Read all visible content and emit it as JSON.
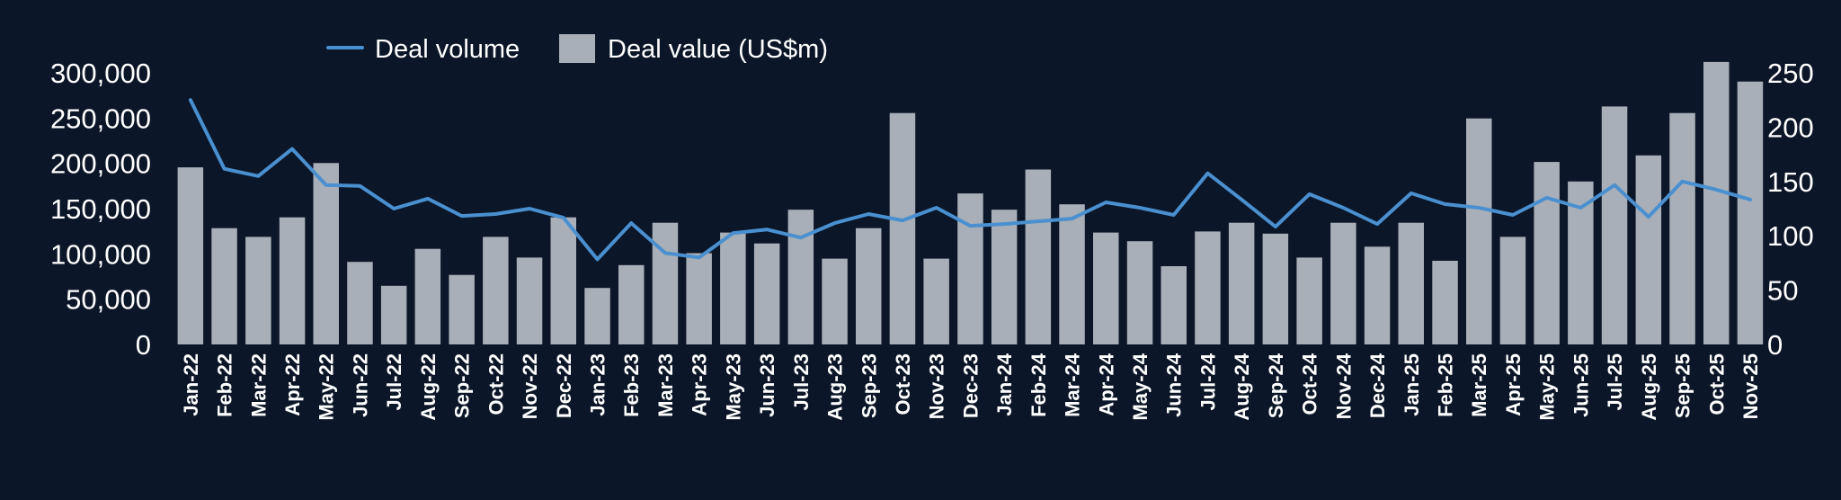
{
  "chart_data": {
    "type": "bar",
    "categories": [
      "Jan-22",
      "Feb-22",
      "Mar-22",
      "Apr-22",
      "May-22",
      "Jun-22",
      "Jul-22",
      "Aug-22",
      "Sep-22",
      "Oct-22",
      "Nov-22",
      "Dec-22",
      "Jan-23",
      "Feb-23",
      "Mar-23",
      "Apr-23",
      "May-23",
      "Jun-23",
      "Jul-23",
      "Aug-23",
      "Sep-23",
      "Oct-23",
      "Nov-23",
      "Dec-23",
      "Jan-24",
      "Feb-24",
      "Mar-24",
      "Apr-24",
      "May-24",
      "Jun-24",
      "Jul-24",
      "Aug-24",
      "Sep-24",
      "Oct-24",
      "Nov-24",
      "Dec-24",
      "Jan-25",
      "Feb-25",
      "Mar-25",
      "Apr-25",
      "May-25",
      "Jun-25",
      "Jul-25",
      "Aug-25",
      "Sep-25",
      "Oct-25",
      "Nov-25"
    ],
    "series": [
      {
        "name": "Deal volume",
        "kind": "line",
        "axis": "left",
        "color": "#4a90d0",
        "values": [
          270000,
          194000,
          186000,
          216000,
          176000,
          175000,
          150000,
          161000,
          142000,
          144000,
          150000,
          140000,
          94000,
          134000,
          101000,
          96000,
          123000,
          127000,
          118000,
          134000,
          144000,
          137000,
          151000,
          131000,
          133000,
          136000,
          139000,
          157000,
          151000,
          143000,
          189000,
          160000,
          130000,
          166000,
          151000,
          133000,
          167000,
          155000,
          151000,
          143000,
          162000,
          151000,
          176000,
          141000,
          180000,
          171000,
          160000
        ]
      },
      {
        "name": "Deal value (US$m)",
        "kind": "bar",
        "axis": "right",
        "color": "#a8afb8",
        "values": [
          163,
          107,
          99,
          117,
          167,
          76,
          54,
          88,
          64,
          99,
          80,
          117,
          52,
          73,
          112,
          84,
          103,
          93,
          124,
          79,
          107,
          213,
          79,
          139,
          124,
          161,
          129,
          103,
          95,
          72,
          104,
          112,
          102,
          80,
          112,
          90,
          112,
          77,
          208,
          99,
          168,
          150,
          219,
          174,
          213,
          260,
          242
        ]
      }
    ],
    "y_left": {
      "ylim": [
        0,
        300000
      ],
      "ticks": [
        "0",
        "50,000",
        "100,000",
        "150,000",
        "200,000",
        "250,000",
        "300,000"
      ]
    },
    "y_right": {
      "ylim": [
        0,
        250
      ],
      "ticks": [
        "0",
        "50",
        "100",
        "150",
        "200",
        "250"
      ]
    },
    "legend": {
      "placement": "top-left",
      "entries": [
        {
          "label": "Deal volume",
          "kind": "line",
          "color": "#4a90d0"
        },
        {
          "label": "Deal value (US$m)",
          "kind": "bar",
          "color": "#a8afb8"
        }
      ]
    },
    "grid": false,
    "title": "",
    "xlabel": "",
    "ylabel": "",
    "background": "#0b1628",
    "text_color": "#ffffff"
  }
}
